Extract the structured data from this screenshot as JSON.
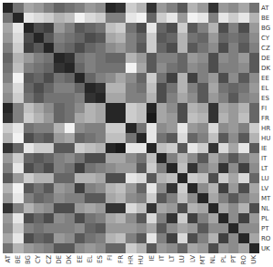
{
  "chart_data": {
    "type": "heatmap",
    "categories": [
      "AT",
      "BE",
      "BG",
      "CY",
      "CZ",
      "DE",
      "DK",
      "EE",
      "EL",
      "ES",
      "FI",
      "FR",
      "HR",
      "HU",
      "IE",
      "IT",
      "LT",
      "LU",
      "LV",
      "MT",
      "NL",
      "PL",
      "PT",
      "RO",
      "UK"
    ],
    "matrix": [
      [
        0.85,
        0.55,
        0.35,
        0.4,
        0.5,
        0.6,
        0.55,
        0.5,
        0.4,
        0.45,
        0.85,
        0.8,
        0.2,
        0.3,
        0.8,
        0.4,
        0.5,
        0.65,
        0.3,
        0.4,
        0.8,
        0.4,
        0.45,
        0.35,
        0.55
      ],
      [
        0.55,
        0.85,
        0.1,
        0.15,
        0.2,
        0.3,
        0.25,
        0.05,
        0.15,
        0.2,
        0.5,
        0.5,
        0.1,
        0.05,
        0.6,
        0.2,
        0.1,
        0.4,
        0.05,
        0.1,
        0.5,
        0.1,
        0.2,
        0.1,
        0.3
      ],
      [
        0.35,
        0.1,
        0.85,
        0.7,
        0.75,
        0.4,
        0.5,
        0.65,
        0.6,
        0.55,
        0.25,
        0.2,
        0.55,
        0.7,
        0.1,
        0.6,
        0.7,
        0.2,
        0.65,
        0.5,
        0.3,
        0.7,
        0.5,
        0.7,
        0.4
      ],
      [
        0.4,
        0.15,
        0.7,
        0.85,
        0.65,
        0.5,
        0.55,
        0.6,
        0.7,
        0.65,
        0.35,
        0.3,
        0.5,
        0.6,
        0.2,
        0.65,
        0.6,
        0.3,
        0.55,
        0.6,
        0.4,
        0.6,
        0.55,
        0.6,
        0.45
      ],
      [
        0.5,
        0.2,
        0.75,
        0.65,
        0.85,
        0.55,
        0.6,
        0.7,
        0.6,
        0.55,
        0.45,
        0.4,
        0.5,
        0.65,
        0.2,
        0.6,
        0.7,
        0.3,
        0.65,
        0.55,
        0.45,
        0.7,
        0.5,
        0.65,
        0.5
      ],
      [
        0.6,
        0.3,
        0.4,
        0.5,
        0.55,
        0.85,
        0.8,
        0.55,
        0.5,
        0.55,
        0.6,
        0.6,
        0.3,
        0.4,
        0.65,
        0.5,
        0.5,
        0.6,
        0.4,
        0.45,
        0.7,
        0.45,
        0.5,
        0.4,
        0.65
      ],
      [
        0.55,
        0.25,
        0.5,
        0.55,
        0.6,
        0.8,
        0.85,
        0.6,
        0.5,
        0.55,
        0.55,
        0.55,
        0.05,
        0.35,
        0.65,
        0.45,
        0.55,
        0.6,
        0.45,
        0.5,
        0.7,
        0.5,
        0.5,
        0.45,
        0.65
      ],
      [
        0.5,
        0.05,
        0.65,
        0.6,
        0.7,
        0.55,
        0.6,
        0.85,
        0.6,
        0.5,
        0.45,
        0.35,
        0.45,
        0.6,
        0.2,
        0.55,
        0.75,
        0.3,
        0.75,
        0.5,
        0.4,
        0.7,
        0.45,
        0.65,
        0.45
      ],
      [
        0.4,
        0.15,
        0.6,
        0.7,
        0.6,
        0.5,
        0.5,
        0.6,
        0.85,
        0.8,
        0.3,
        0.3,
        0.5,
        0.55,
        0.25,
        0.7,
        0.55,
        0.3,
        0.5,
        0.65,
        0.35,
        0.55,
        0.6,
        0.55,
        0.4
      ],
      [
        0.45,
        0.2,
        0.55,
        0.65,
        0.55,
        0.55,
        0.55,
        0.5,
        0.8,
        0.85,
        0.35,
        0.35,
        0.5,
        0.5,
        0.3,
        0.7,
        0.5,
        0.35,
        0.45,
        0.65,
        0.4,
        0.5,
        0.65,
        0.5,
        0.45
      ],
      [
        0.85,
        0.5,
        0.25,
        0.35,
        0.45,
        0.6,
        0.55,
        0.45,
        0.3,
        0.35,
        0.85,
        0.85,
        0.2,
        0.25,
        0.85,
        0.35,
        0.45,
        0.7,
        0.3,
        0.35,
        0.8,
        0.35,
        0.4,
        0.3,
        0.6
      ],
      [
        0.8,
        0.5,
        0.2,
        0.3,
        0.4,
        0.6,
        0.55,
        0.35,
        0.3,
        0.35,
        0.85,
        0.85,
        0.2,
        0.25,
        0.9,
        0.35,
        0.4,
        0.7,
        0.25,
        0.3,
        0.8,
        0.3,
        0.4,
        0.25,
        0.6
      ],
      [
        0.2,
        0.1,
        0.55,
        0.5,
        0.5,
        0.3,
        0.05,
        0.45,
        0.5,
        0.5,
        0.2,
        0.2,
        0.85,
        0.55,
        0.1,
        0.45,
        0.4,
        0.1,
        0.4,
        0.45,
        0.15,
        0.45,
        0.4,
        0.5,
        0.2
      ],
      [
        0.3,
        0.05,
        0.7,
        0.6,
        0.65,
        0.4,
        0.35,
        0.6,
        0.55,
        0.5,
        0.25,
        0.25,
        0.55,
        0.85,
        0.1,
        0.55,
        0.65,
        0.15,
        0.6,
        0.5,
        0.25,
        0.65,
        0.45,
        0.65,
        0.3
      ],
      [
        0.8,
        0.6,
        0.1,
        0.2,
        0.2,
        0.65,
        0.65,
        0.2,
        0.25,
        0.3,
        0.85,
        0.9,
        0.1,
        0.1,
        0.85,
        0.25,
        0.2,
        0.65,
        0.1,
        0.2,
        0.8,
        0.15,
        0.35,
        0.1,
        0.65
      ],
      [
        0.4,
        0.2,
        0.6,
        0.65,
        0.6,
        0.5,
        0.45,
        0.55,
        0.7,
        0.7,
        0.35,
        0.35,
        0.45,
        0.55,
        0.25,
        0.85,
        0.5,
        0.3,
        0.45,
        0.65,
        0.35,
        0.5,
        0.65,
        0.5,
        0.4
      ],
      [
        0.5,
        0.1,
        0.7,
        0.6,
        0.7,
        0.5,
        0.55,
        0.75,
        0.55,
        0.5,
        0.45,
        0.4,
        0.4,
        0.65,
        0.2,
        0.5,
        0.85,
        0.25,
        0.8,
        0.5,
        0.4,
        0.8,
        0.45,
        0.75,
        0.45
      ],
      [
        0.65,
        0.4,
        0.2,
        0.3,
        0.3,
        0.6,
        0.6,
        0.3,
        0.3,
        0.35,
        0.7,
        0.7,
        0.1,
        0.15,
        0.65,
        0.3,
        0.25,
        0.85,
        0.2,
        0.25,
        0.7,
        0.2,
        0.35,
        0.15,
        0.6
      ],
      [
        0.3,
        0.05,
        0.65,
        0.55,
        0.65,
        0.4,
        0.45,
        0.75,
        0.5,
        0.45,
        0.3,
        0.25,
        0.4,
        0.6,
        0.1,
        0.45,
        0.8,
        0.2,
        0.85,
        0.45,
        0.3,
        0.75,
        0.4,
        0.7,
        0.35
      ],
      [
        0.4,
        0.1,
        0.5,
        0.6,
        0.55,
        0.45,
        0.5,
        0.5,
        0.65,
        0.65,
        0.35,
        0.3,
        0.45,
        0.5,
        0.2,
        0.65,
        0.5,
        0.25,
        0.45,
        0.85,
        0.35,
        0.5,
        0.65,
        0.5,
        0.4
      ],
      [
        0.8,
        0.5,
        0.3,
        0.4,
        0.45,
        0.7,
        0.7,
        0.4,
        0.35,
        0.4,
        0.8,
        0.8,
        0.15,
        0.25,
        0.8,
        0.35,
        0.4,
        0.7,
        0.3,
        0.35,
        0.85,
        0.35,
        0.45,
        0.3,
        0.7
      ],
      [
        0.4,
        0.1,
        0.7,
        0.6,
        0.7,
        0.45,
        0.5,
        0.7,
        0.55,
        0.5,
        0.35,
        0.3,
        0.45,
        0.65,
        0.15,
        0.5,
        0.8,
        0.2,
        0.75,
        0.5,
        0.35,
        0.85,
        0.45,
        0.75,
        0.4
      ],
      [
        0.45,
        0.2,
        0.5,
        0.55,
        0.5,
        0.5,
        0.5,
        0.45,
        0.6,
        0.65,
        0.4,
        0.4,
        0.4,
        0.45,
        0.35,
        0.65,
        0.45,
        0.35,
        0.4,
        0.65,
        0.45,
        0.45,
        0.85,
        0.45,
        0.45
      ],
      [
        0.35,
        0.1,
        0.7,
        0.6,
        0.65,
        0.4,
        0.45,
        0.65,
        0.55,
        0.5,
        0.3,
        0.25,
        0.5,
        0.65,
        0.1,
        0.5,
        0.75,
        0.15,
        0.7,
        0.5,
        0.3,
        0.75,
        0.45,
        0.85,
        0.35
      ],
      [
        0.55,
        0.3,
        0.4,
        0.45,
        0.5,
        0.65,
        0.65,
        0.45,
        0.4,
        0.45,
        0.6,
        0.6,
        0.2,
        0.3,
        0.65,
        0.4,
        0.45,
        0.6,
        0.35,
        0.4,
        0.7,
        0.4,
        0.45,
        0.35,
        0.85
      ]
    ],
    "zlim": [
      0.0,
      1.0
    ],
    "color": "#000000"
  }
}
